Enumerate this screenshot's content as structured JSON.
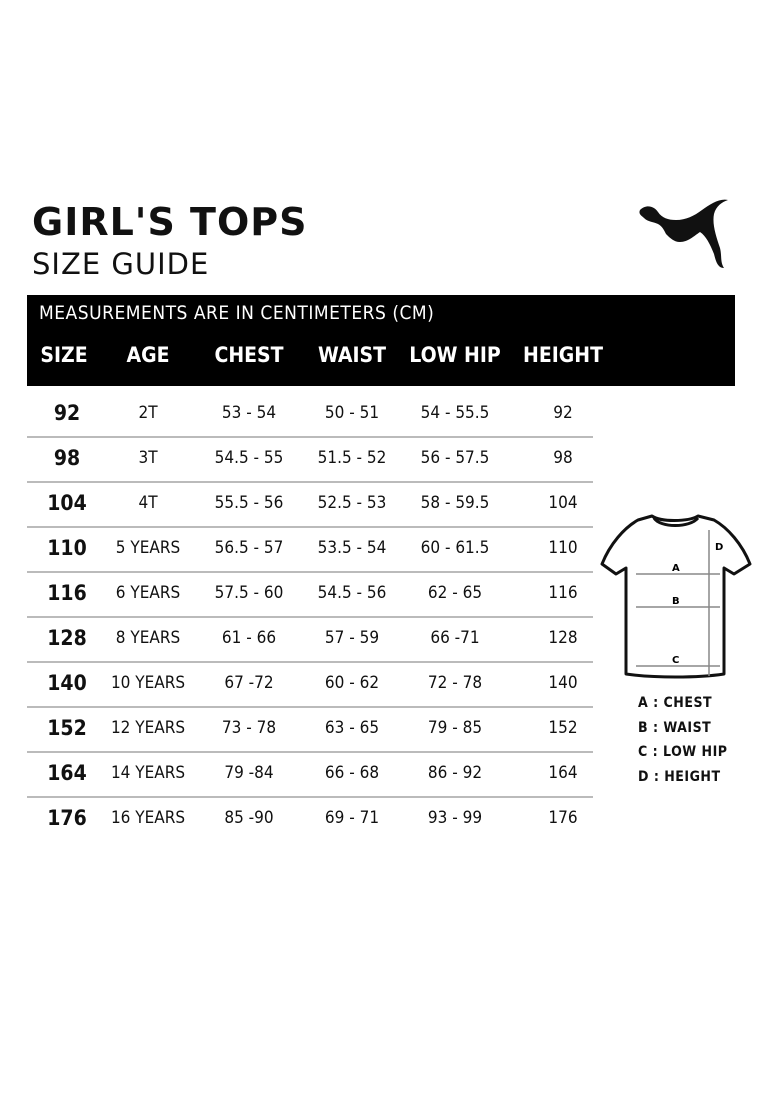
{
  "header": {
    "title": "GIRL'S TOPS",
    "subtitle": "SIZE GUIDE",
    "logo": "puma-logo"
  },
  "table": {
    "note": "MEASUREMENTS ARE IN CENTIMETERS (CM)",
    "columns": [
      "SIZE",
      "AGE",
      "CHEST",
      "WAIST",
      "LOW HIP",
      "HEIGHT"
    ],
    "rows": [
      [
        "92",
        "2T",
        "53 - 54",
        "50 - 51",
        "54 - 55.5",
        "92"
      ],
      [
        "98",
        "3T",
        "54.5 - 55",
        "51.5 - 52",
        "56 - 57.5",
        "98"
      ],
      [
        "104",
        "4T",
        "55.5 - 56",
        "52.5 - 53",
        "58 - 59.5",
        "104"
      ],
      [
        "110",
        "5 YEARS",
        "56.5 - 57",
        "53.5 - 54",
        "60 - 61.5",
        "110"
      ],
      [
        "116",
        "6 YEARS",
        "57.5 - 60",
        "54.5 - 56",
        "62 - 65",
        "116"
      ],
      [
        "128",
        "8 YEARS",
        "61 - 66",
        "57 - 59",
        "66 -71",
        "128"
      ],
      [
        "140",
        "10 YEARS",
        "67 -72",
        "60 - 62",
        "72 - 78",
        "140"
      ],
      [
        "152",
        "12 YEARS",
        "73 - 78",
        "63 - 65",
        "79 - 85",
        "152"
      ],
      [
        "164",
        "14 YEARS",
        "79 -84",
        "66 - 68",
        "86 - 92",
        "164"
      ],
      [
        "176",
        "16 YEARS",
        "85 -90",
        "69 - 71",
        "93 - 99",
        "176"
      ]
    ]
  },
  "diagram": {
    "labels": {
      "a": "A",
      "b": "B",
      "c": "C",
      "d": "D"
    },
    "legend": [
      "A : CHEST",
      "B : WAIST",
      "C : LOW HIP",
      "D : HEIGHT"
    ]
  }
}
